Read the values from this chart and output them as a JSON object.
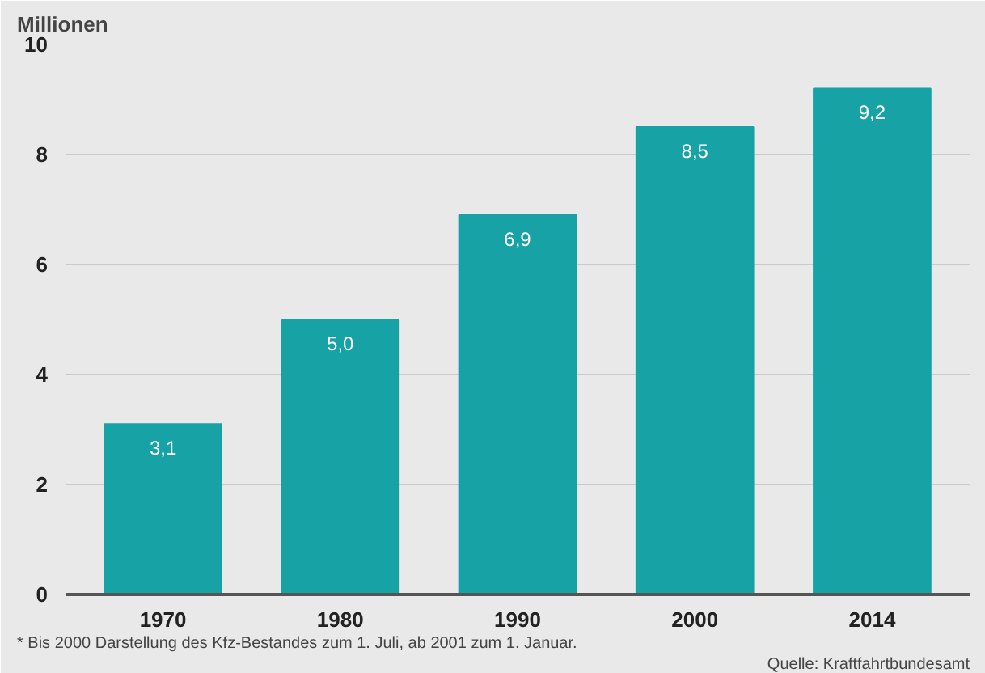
{
  "chart_data": {
    "type": "bar",
    "ylabel": "Millionen",
    "categories": [
      "1970",
      "1980",
      "1990",
      "2000",
      "2014"
    ],
    "values": [
      3.1,
      5.0,
      6.9,
      8.5,
      9.2
    ],
    "value_labels": [
      "3,1",
      "5,0",
      "6,9",
      "8,5",
      "9,2"
    ],
    "color": "#17a2a6",
    "ylim": [
      0,
      10
    ],
    "yticks": [
      0,
      2,
      4,
      6,
      8,
      10
    ],
    "grid": "y",
    "annotations": [
      "* Bis 2000 Darstellung des Kfz-Bestandes zum 1. Juli, ab 2001 zum 1. Januar.",
      "Quelle: Kraftfahrtbundesamt"
    ]
  }
}
